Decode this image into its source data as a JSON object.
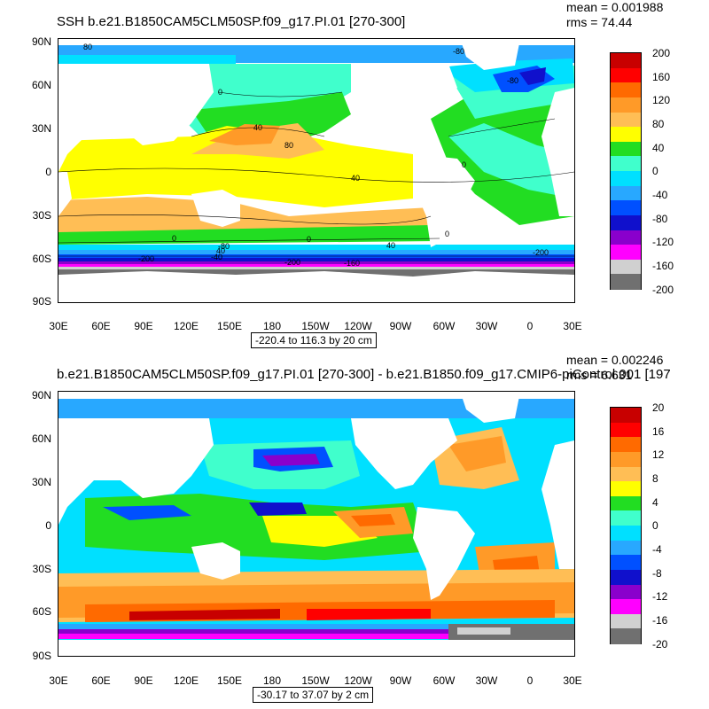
{
  "panels": [
    {
      "title": "SSH b.e21.B1850CAM5CLM50SP.f09_g17.PI.01 [270-300]",
      "mean": "mean = 0.001988",
      "rms": "rms = 74.44",
      "range": "-220.4 to 116.3 by 20 cm",
      "colorbar": [
        "200",
        "160",
        "120",
        "80",
        "40",
        "0",
        "-40",
        "-80",
        "-120",
        "-160",
        "-200"
      ],
      "colors": [
        "#c80000",
        "#ff0000",
        "#ff6a00",
        "#ff9a28",
        "#ffbe55",
        "#ffff00",
        "#22dd22",
        "#40ffcc",
        "#00e0ff",
        "#28a8ff",
        "#0050ff",
        "#1010cc",
        "#8a00cc",
        "#ff00ff",
        "#d0d0d0",
        "#707070"
      ],
      "contour_labels": [
        "80",
        "0",
        "40",
        "80",
        "40",
        "0",
        "0",
        "40",
        "-80",
        "0",
        "-200",
        "-40",
        "40",
        "0",
        "-200",
        "-160",
        "-80",
        "-200",
        "-80"
      ]
    },
    {
      "title": "b.e21.B1850CAM5CLM50SP.f09_g17.PI.01 [270-300] - b.e21.B1850.f09_g17.CMIP6-piControl.001 [197",
      "mean": "mean = 0.002246",
      "rms": "rms = 6.631",
      "range": "-30.17 to 37.07 by 2 cm",
      "colorbar": [
        "20",
        "16",
        "12",
        "8",
        "4",
        "0",
        "-4",
        "-8",
        "-12",
        "-16",
        "-20"
      ],
      "colors": [
        "#c80000",
        "#ff0000",
        "#ff6a00",
        "#ff9a28",
        "#ffbe55",
        "#ffff00",
        "#22dd22",
        "#40ffcc",
        "#00e0ff",
        "#28a8ff",
        "#0050ff",
        "#1010cc",
        "#8a00cc",
        "#ff00ff",
        "#d0d0d0",
        "#707070"
      ]
    }
  ],
  "lat_labels": [
    "90N",
    "60N",
    "30N",
    "0",
    "30S",
    "60S",
    "90S"
  ],
  "lon_labels": [
    "30E",
    "60E",
    "90E",
    "120E",
    "150E",
    "180",
    "150W",
    "120W",
    "90W",
    "60W",
    "30W",
    "0",
    "30E"
  ]
}
